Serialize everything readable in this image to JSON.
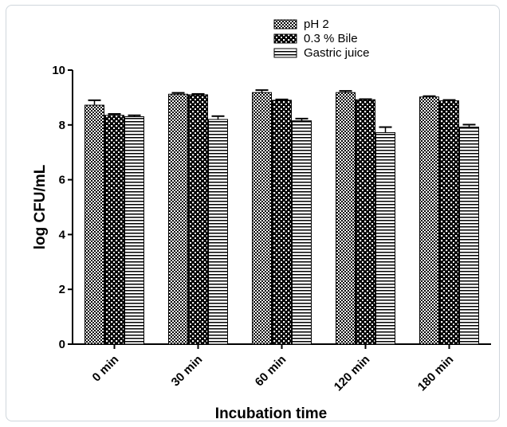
{
  "chart_data": {
    "type": "bar",
    "xlabel": "Incubation time",
    "ylabel": "log CFU/mL",
    "ylim": [
      0,
      10
    ],
    "yticks": [
      "0",
      "2",
      "4",
      "6",
      "8",
      "10"
    ],
    "categories": [
      "0 min",
      "30 min",
      "60 min",
      "120 min",
      "180 min"
    ],
    "legend_position": "top-center",
    "grid": false,
    "series": [
      {
        "name": "pH 2",
        "pattern": "checker",
        "values": [
          8.72,
          9.12,
          9.18,
          9.18,
          9.02
        ],
        "errors": [
          0.18,
          0.05,
          0.09,
          0.06,
          0.03
        ]
      },
      {
        "name": "0.3 % Bile",
        "pattern": "dots",
        "values": [
          8.35,
          9.1,
          8.9,
          8.92,
          8.88
        ],
        "errors": [
          0.05,
          0.03,
          0.03,
          0.02,
          0.03
        ]
      },
      {
        "name": "Gastric juice",
        "pattern": "stripes",
        "values": [
          8.3,
          8.2,
          8.15,
          7.72,
          7.92
        ],
        "errors": [
          0.05,
          0.12,
          0.08,
          0.2,
          0.09
        ]
      }
    ]
  }
}
